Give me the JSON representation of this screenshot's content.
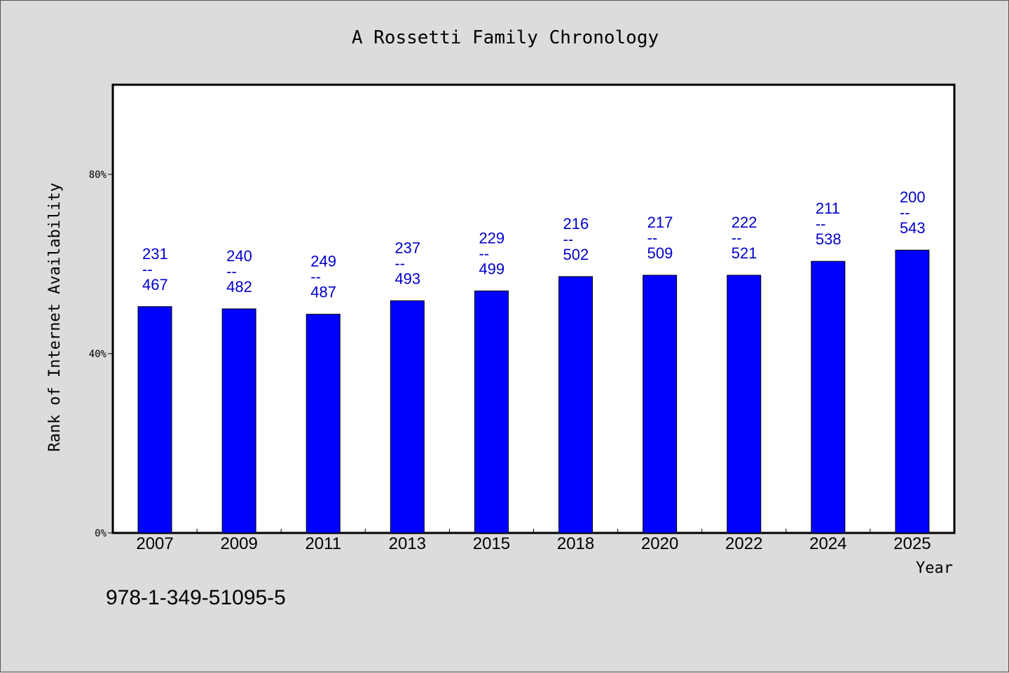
{
  "chart_data": {
    "type": "bar",
    "title": "A Rossetti Family Chronology",
    "xlabel": "Year",
    "ylabel": "Rank of Internet Availability",
    "categories": [
      "2007",
      "2009",
      "2011",
      "2013",
      "2015",
      "2018",
      "2020",
      "2022",
      "2024",
      "2025"
    ],
    "values": [
      50.5,
      50.0,
      48.8,
      51.8,
      54.0,
      57.2,
      57.5,
      57.5,
      60.6,
      63.1
    ],
    "data_labels": [
      {
        "top": "231",
        "sep": "--",
        "bottom": "467"
      },
      {
        "top": "240",
        "sep": "--",
        "bottom": "482"
      },
      {
        "top": "249",
        "sep": "--",
        "bottom": "487"
      },
      {
        "top": "237",
        "sep": "--",
        "bottom": "493"
      },
      {
        "top": "229",
        "sep": "--",
        "bottom": "499"
      },
      {
        "top": "216",
        "sep": "--",
        "bottom": "502"
      },
      {
        "top": "217",
        "sep": "--",
        "bottom": "509"
      },
      {
        "top": "222",
        "sep": "--",
        "bottom": "521"
      },
      {
        "top": "211",
        "sep": "--",
        "bottom": "538"
      },
      {
        "top": "200",
        "sep": "--",
        "bottom": "543"
      }
    ],
    "ylim": [
      0,
      100
    ],
    "yticks": [
      0,
      40,
      80
    ],
    "ytick_labels": [
      "0%",
      "40%",
      "80%"
    ],
    "grid": false,
    "bar_color": "#0000ff",
    "label_color": "#0000cc"
  },
  "footnote": "978-1-349-51095-5"
}
